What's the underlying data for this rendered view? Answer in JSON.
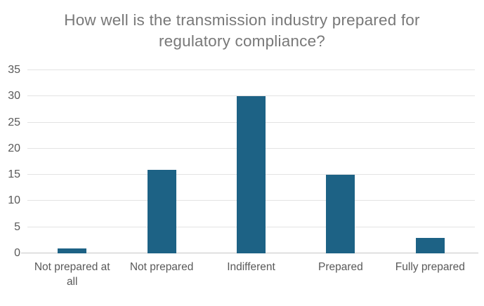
{
  "chart_data": {
    "type": "bar",
    "title": "How well is the transmission industry prepared for regulatory compliance?",
    "categories": [
      "Not prepared at all",
      "Not prepared",
      "Indifferent",
      "Prepared",
      "Fully prepared"
    ],
    "values": [
      1,
      16,
      30,
      15,
      3
    ],
    "xlabel": "",
    "ylabel": "",
    "ylim": [
      0,
      35
    ],
    "ytick_step": 5,
    "yticks": [
      0,
      5,
      10,
      15,
      20,
      25,
      30,
      35
    ],
    "grid": "horizontal",
    "legend": "none",
    "colors": {
      "bar": "#1d6285",
      "gridline": "#e3e3e3",
      "axis_line": "#c6c6c6",
      "tick_label": "#595959",
      "title": "#787878",
      "background": "#ffffff"
    }
  }
}
